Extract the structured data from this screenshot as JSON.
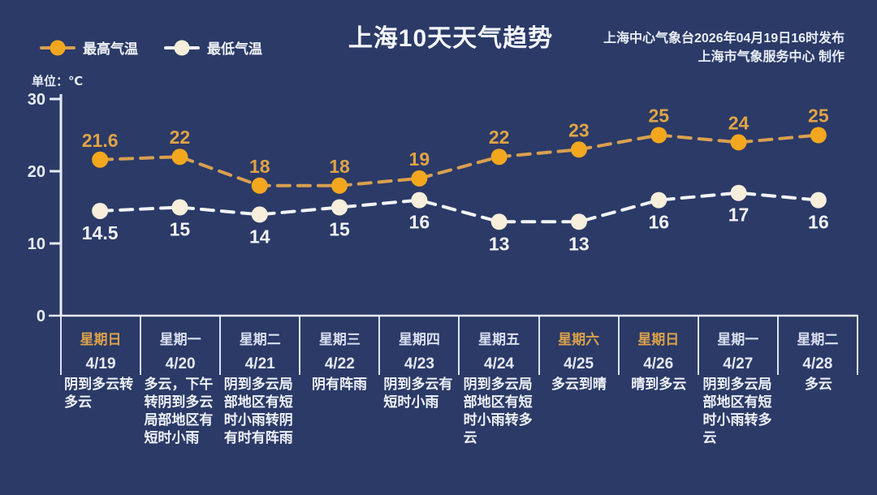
{
  "header": {
    "title": "上海10天天气趋势",
    "publisher_line1": "上海中心气象台2026年04月19日16时发布",
    "publisher_line2": "上海市气象服务中心  制作"
  },
  "legend": {
    "high_label": "最高气温",
    "low_label": "最低气温"
  },
  "unit_label": "单位：℃",
  "chart_data": {
    "type": "line",
    "title": "上海10天天气趋势",
    "ylabel": "单位：℃",
    "ylim": [
      0,
      30
    ],
    "yticks": [
      0,
      10,
      20,
      30
    ],
    "grid": false,
    "legend_position": "top-left",
    "line_style": "dashed",
    "categories": [
      "4/19",
      "4/20",
      "4/21",
      "4/22",
      "4/23",
      "4/24",
      "4/25",
      "4/26",
      "4/27",
      "4/28"
    ],
    "series": [
      {
        "name": "最高气温",
        "color": "#f3a71e",
        "values": [
          21.6,
          22,
          18,
          18,
          19,
          22,
          23,
          25,
          24,
          25
        ]
      },
      {
        "name": "最低气温",
        "color": "#f7efdb",
        "values": [
          14.5,
          15,
          14,
          15,
          16,
          13,
          13,
          16,
          17,
          16
        ]
      }
    ]
  },
  "days": [
    {
      "weekday": "星期日",
      "date": "4/19",
      "weekend": true,
      "weather": "阴到多云转多云"
    },
    {
      "weekday": "星期一",
      "date": "4/20",
      "weekend": false,
      "weather": "多云，下午转阴到多云局部地区有短时小雨"
    },
    {
      "weekday": "星期二",
      "date": "4/21",
      "weekend": false,
      "weather": "阴到多云局部地区有短时小雨转阴有时有阵雨"
    },
    {
      "weekday": "星期三",
      "date": "4/22",
      "weekend": false,
      "weather": "阴有阵雨"
    },
    {
      "weekday": "星期四",
      "date": "4/23",
      "weekend": false,
      "weather": "阴到多云有短时小雨"
    },
    {
      "weekday": "星期五",
      "date": "4/24",
      "weekend": false,
      "weather": "阴到多云局部地区有短时小雨转多云"
    },
    {
      "weekday": "星期六",
      "date": "4/25",
      "weekend": true,
      "weather": "多云到晴"
    },
    {
      "weekday": "星期日",
      "date": "4/26",
      "weekend": true,
      "weather": "晴到多云"
    },
    {
      "weekday": "星期一",
      "date": "4/27",
      "weekend": false,
      "weather": "阴到多云局部地区有短时小雨转多云"
    },
    {
      "weekday": "星期二",
      "date": "4/28",
      "weekend": false,
      "weather": "多云"
    }
  ],
  "colors": {
    "background": "#2b3a67",
    "axis": "#e8ecf4",
    "high_marker": "#f3a71e",
    "high_line": "#d9a04f",
    "high_label": "#e0a445",
    "low_marker": "#f7efdb",
    "low_line": "#f2f4f6",
    "low_label": "#f2f3f5",
    "weekend_text": "#dba14b",
    "weekday_text": "#d9dff0",
    "date_text": "#e6eaf6",
    "weather_text": "#eef1f7"
  }
}
